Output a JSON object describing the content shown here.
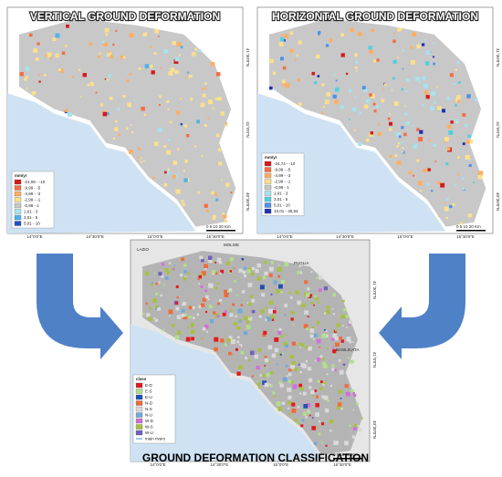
{
  "panels": [
    {
      "title": "VERTICAL GROUND DEFORMATION",
      "legend": {
        "title": "mm/yr",
        "items": [
          {
            "label": "-21,09 - -10",
            "color": "#d7191c"
          },
          {
            "label": "-9,99 - -5",
            "color": "#f46d43"
          },
          {
            "label": "-4,99 - -3",
            "color": "#fdae61"
          },
          {
            "label": "-2,99 - -1",
            "color": "#fee08b"
          },
          {
            "label": "-0,99 - 1",
            "color": "#c8c8c8"
          },
          {
            "label": "1,01 - 3",
            "color": "#a6e3f0"
          },
          {
            "label": "3,01 - 5",
            "color": "#4fb3e8"
          },
          {
            "label": "5,01 - 10",
            "color": "#1f4fc4"
          }
        ]
      },
      "scale": "0 5 10 20 Km"
    },
    {
      "title": "HORIZONTAL GROUND DEFORMATION",
      "legend": {
        "title": "mm/yr",
        "items": [
          {
            "label": "-34,74 - -10",
            "color": "#d7191c"
          },
          {
            "label": "-9,99 - -5",
            "color": "#f46d43"
          },
          {
            "label": "-4,99 - -3",
            "color": "#fdae61"
          },
          {
            "label": "-2,99 - -1",
            "color": "#fee08b"
          },
          {
            "label": "-0,99 - 1",
            "color": "#c8c8c8"
          },
          {
            "label": "1,01 - 3",
            "color": "#a6e3f0"
          },
          {
            "label": "3,01 - 5",
            "color": "#4fd0e0"
          },
          {
            "label": "5,01 - 10",
            "color": "#4f8fe8"
          },
          {
            "label": "10,01 - 30,84",
            "color": "#1f2fb4"
          }
        ]
      },
      "scale": "0 5 10 20 Km"
    },
    {
      "title": "GROUND DEFORMATION CLASSIFICATION",
      "legend": {
        "title": "class",
        "items": [
          {
            "label": "E-D",
            "color": "#e31a1c"
          },
          {
            "label": "E-S",
            "color": "#b2df8a"
          },
          {
            "label": "E-U",
            "color": "#1f4fb4"
          },
          {
            "label": "N-D",
            "color": "#f06a3a"
          },
          {
            "label": "N-S",
            "color": "#d9d9d9"
          },
          {
            "label": "N-U",
            "color": "#6fa8dc"
          },
          {
            "label": "W-D",
            "color": "#d070d8"
          },
          {
            "label": "W-S",
            "color": "#a8c040"
          },
          {
            "label": "W-U",
            "color": "#7060c0"
          },
          {
            "label": "main rivers",
            "color": "#4a90d0"
          }
        ]
      },
      "scale": "0 5 10 20 Km"
    }
  ],
  "longitudes": [
    "14°0'0\"E",
    "14°30'0\"E",
    "15°0'0\"E",
    "15°30'0\"E"
  ],
  "latitudes": [
    "41°30'0\"N",
    "41°0'0\"N",
    "40°30'0\"N"
  ],
  "regions": [
    "LAZIO",
    "MOLISE",
    "PUGLIA",
    "BASILICATA"
  ]
}
